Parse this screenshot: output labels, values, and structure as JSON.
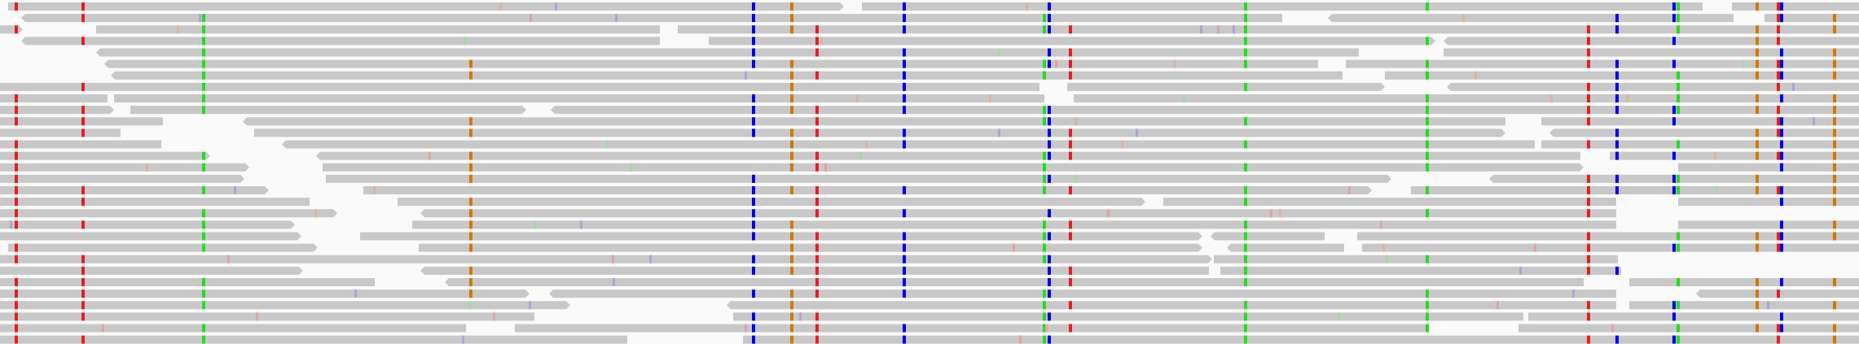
{
  "view": {
    "type": "sequence-read-alignment",
    "background_color": "#fafafa",
    "read_color": "#c8c8c8",
    "read_count": 40
  },
  "base_colors": {
    "A": "#22dd22",
    "C": "#0000e6",
    "G": "#d27800",
    "T": "#e61e1e"
  },
  "variant_columns": [
    {
      "id": "snv-01",
      "base": "T"
    },
    {
      "id": "snv-02",
      "base": "T"
    },
    {
      "id": "snv-03",
      "base": "A"
    },
    {
      "id": "snv-04",
      "base": "G"
    },
    {
      "id": "snv-05",
      "base": "C"
    },
    {
      "id": "snv-06",
      "base": "G"
    },
    {
      "id": "snv-07",
      "base": "T"
    },
    {
      "id": "snv-08",
      "base": "C"
    },
    {
      "id": "snv-09",
      "base": "A"
    },
    {
      "id": "snv-10",
      "base": "C"
    },
    {
      "id": "snv-11",
      "base": "T"
    },
    {
      "id": "snv-12",
      "base": "A"
    },
    {
      "id": "snv-13",
      "base": "A"
    },
    {
      "id": "snv-14",
      "base": "T"
    },
    {
      "id": "snv-15",
      "base": "C"
    },
    {
      "id": "snv-16",
      "base": "C"
    },
    {
      "id": "snv-17",
      "base": "A"
    },
    {
      "id": "snv-18",
      "base": "G"
    },
    {
      "id": "snv-19",
      "base": "T"
    },
    {
      "id": "snv-20",
      "base": "C"
    },
    {
      "id": "snv-21",
      "base": "G"
    }
  ]
}
